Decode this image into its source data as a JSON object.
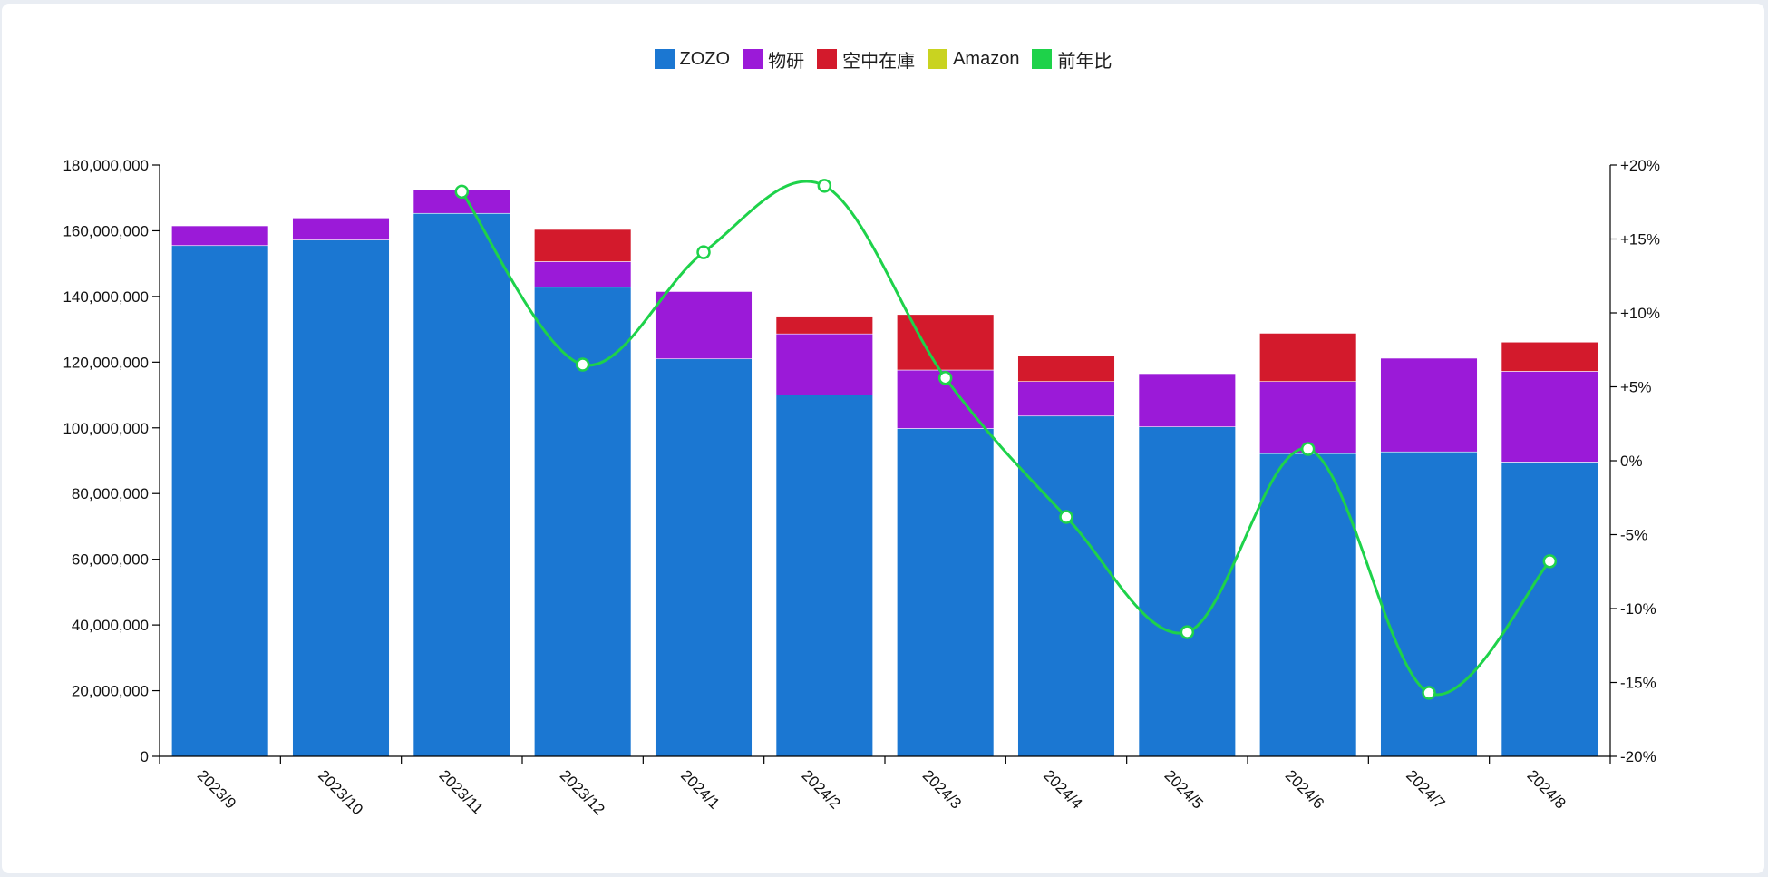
{
  "chart_data": {
    "type": "bar",
    "stacked": true,
    "title": "",
    "xlabel": "",
    "ylabel": "",
    "categories": [
      "2023/9",
      "2023/10",
      "2023/11",
      "2023/12",
      "2024/1",
      "2024/2",
      "2024/3",
      "2024/4",
      "2024/5",
      "2024/6",
      "2024/7",
      "2024/8"
    ],
    "series": [
      {
        "name": "ZOZO",
        "color": "#1b77d2",
        "values": [
          155500000,
          157200000,
          165300000,
          142800000,
          121000000,
          110000000,
          99800000,
          103600000,
          100300000,
          92200000,
          92700000,
          89600000
        ]
      },
      {
        "name": "物研",
        "color": "#9b1ad8",
        "values": [
          6000000,
          6700000,
          7100000,
          7800000,
          20500000,
          18600000,
          17800000,
          10500000,
          16200000,
          21900000,
          28500000,
          27600000
        ]
      },
      {
        "name": "空中在庫",
        "color": "#d31a2c",
        "values": [
          0,
          0,
          0,
          9800000,
          0,
          5400000,
          16900000,
          7800000,
          0,
          14700000,
          0,
          8900000
        ]
      },
      {
        "name": "Amazon",
        "color": "#c9d320",
        "values": [
          0,
          0,
          0,
          0,
          0,
          0,
          0,
          0,
          0,
          0,
          0,
          0
        ]
      }
    ],
    "line_series": {
      "name": "前年比",
      "color": "#1ed24a",
      "axis": "right",
      "values": [
        null,
        null,
        18.2,
        6.5,
        14.1,
        18.6,
        5.6,
        -3.8,
        -11.6,
        0.8,
        -15.7,
        -6.8
      ]
    },
    "y_left": {
      "min": 0,
      "max": 180000000,
      "ticks": [
        "0",
        "20,000,000",
        "40,000,000",
        "60,000,000",
        "80,000,000",
        "100,000,000",
        "120,000,000",
        "140,000,000",
        "160,000,000",
        "180,000,000"
      ]
    },
    "y_right": {
      "min": -20,
      "max": 20,
      "ticks": [
        "-20%",
        "-15%",
        "-10%",
        "-5%",
        "0%",
        "+5%",
        "+10%",
        "+15%",
        "+20%"
      ]
    },
    "legend_position": "top-center",
    "grid": false
  }
}
